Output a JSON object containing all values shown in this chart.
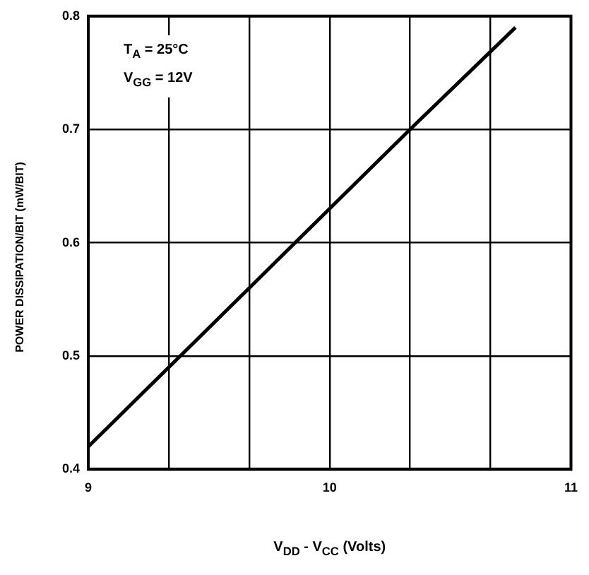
{
  "chart_data": {
    "type": "line",
    "xlabel": "V$_{DD}$ - V$_{CC}$ (Volts)",
    "ylabel": "POWER DISSIPATION/BIT (mW/BIT)",
    "annotations": [
      "T$_{A}$ = 25°C",
      "V$_{GG}$ = 12V"
    ],
    "series": [
      {
        "color": "#000000",
        "x": [
          9,
          10.333,
          10.77
        ],
        "values": [
          0.42,
          0.7,
          0.79
        ]
      }
    ],
    "xlim": [
      9,
      11
    ],
    "xticks": [
      9,
      {
        "value": 9.333,
        "label": null
      },
      {
        "value": 9.667,
        "label": null
      },
      10,
      {
        "value": 10.333,
        "label": null
      },
      {
        "value": 10.667,
        "label": null
      },
      11
    ],
    "ylim": [
      0.4,
      0.8
    ],
    "yticks": [
      0.4,
      0.5,
      0.6,
      0.7,
      0.8
    ],
    "grid": true,
    "legend": false,
    "marker": "none",
    "line_style": "solid"
  }
}
